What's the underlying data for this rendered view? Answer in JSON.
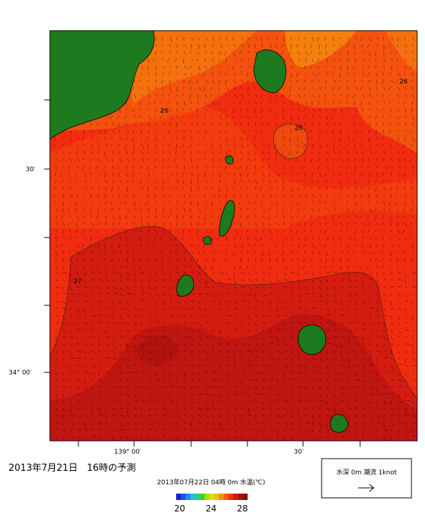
{
  "title": "2013年7月21日　16時の予測",
  "subtitle": "2013年07月22日 04時 0m 水温(℃)",
  "map": {
    "contour_labels": [
      "26",
      "26",
      "26",
      "27"
    ],
    "y_axis_labels": [
      "30′",
      "34° 00′"
    ],
    "x_axis_labels": [
      "139° 00′",
      "30′"
    ]
  },
  "colorbar": {
    "labels": [
      "20",
      "24",
      "28"
    ]
  },
  "legend": {
    "text": "水深 0m 潮流 1knot"
  }
}
